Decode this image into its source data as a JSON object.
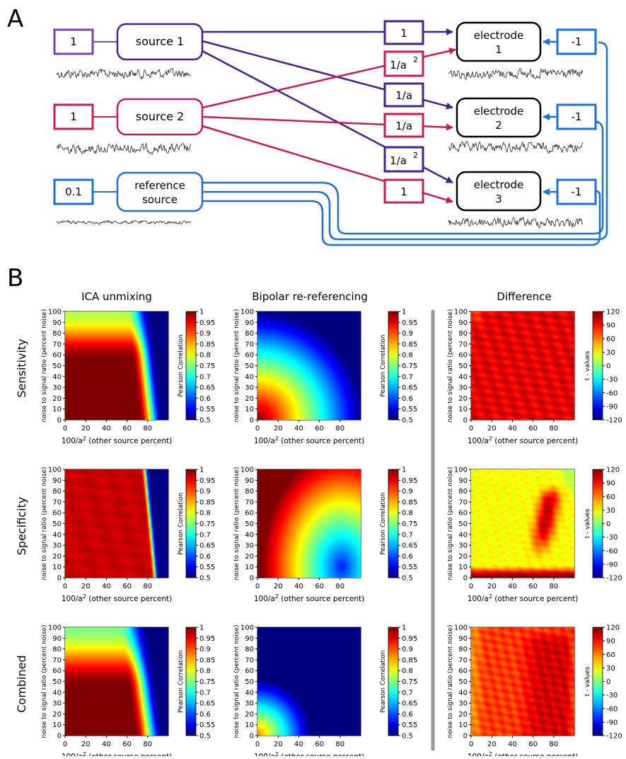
{
  "panel_labels": {
    "a": "A",
    "b": "B"
  },
  "diagram": {
    "gains": {
      "source1": "1",
      "source2": "1",
      "reference": "0.1"
    },
    "sources": {
      "source1": "source 1",
      "source2": "source 2",
      "reference_line1": "reference",
      "reference_line2": "source"
    },
    "weights": {
      "w1": "1",
      "w2": "1/a",
      "w2_sup": "2",
      "w3": "1/a",
      "w4": "1/a",
      "w5": "1/a",
      "w5_sup": "2",
      "w6": "1"
    },
    "electrodes": {
      "e1_line1": "electrode",
      "e1_line2": "1",
      "e2_line1": "electrode",
      "e2_line2": "2",
      "e3_line1": "electrode",
      "e3_line2": "3"
    },
    "ref_weights": {
      "r1": "-1",
      "r2": "-1",
      "r3": "-1"
    }
  },
  "columns": {
    "c1": "ICA unmixing",
    "c2": "Bipolar re-referencing",
    "c3": "Difference"
  },
  "rows": {
    "r1": "Sensitivity",
    "r2": "Specificity",
    "r3": "Combined"
  },
  "axes": {
    "ylabel": "noise to signal ratio (percent noise)",
    "xlabel_pre": "100/a",
    "xlabel_sup": "2",
    "xlabel_post": " (other source percent)",
    "xticks": [
      "0",
      "20",
      "40",
      "60",
      "80"
    ],
    "yticks": [
      "0",
      "10",
      "20",
      "30",
      "40",
      "50",
      "60",
      "70",
      "80",
      "90",
      "100"
    ]
  },
  "colorbars": {
    "corr_label": "Pearson Correlation",
    "corr_ticks": [
      "1",
      "0.95",
      "0.9",
      "0.85",
      "0.8",
      "0.75",
      "0.7",
      "0.65",
      "0.6",
      "0.55",
      "0.5"
    ],
    "t_label": "t - values",
    "t_ticks": [
      "120",
      "90",
      "60",
      "30",
      "0",
      "-30",
      "-60",
      "-90",
      "-120"
    ]
  },
  "colors": {
    "purple": "#7744aa",
    "crimson": "#cc1a55",
    "blue": "#1a6ee0",
    "black": "#000000"
  },
  "chart_data": [
    {
      "type": "heatmap",
      "column": "ICA unmixing",
      "row": "Sensitivity",
      "xlabel": "100/a2 (other source percent)",
      "ylabel": "noise to signal ratio (percent noise)",
      "xlim": [
        0,
        100
      ],
      "ylim": [
        0,
        100
      ],
      "colorbar": "Pearson Correlation",
      "clim": [
        0.5,
        1
      ]
    },
    {
      "type": "heatmap",
      "column": "Bipolar re-referencing",
      "row": "Sensitivity",
      "xlim": [
        0,
        100
      ],
      "ylim": [
        0,
        100
      ],
      "colorbar": "Pearson Correlation",
      "clim": [
        0.5,
        1
      ]
    },
    {
      "type": "heatmap",
      "column": "Difference",
      "row": "Sensitivity",
      "xlim": [
        0,
        100
      ],
      "ylim": [
        0,
        100
      ],
      "colorbar": "t - values",
      "clim": [
        -120,
        120
      ]
    },
    {
      "type": "heatmap",
      "column": "ICA unmixing",
      "row": "Specificity",
      "xlim": [
        0,
        100
      ],
      "ylim": [
        0,
        100
      ],
      "colorbar": "Pearson Correlation",
      "clim": [
        0.5,
        1
      ]
    },
    {
      "type": "heatmap",
      "column": "Bipolar re-referencing",
      "row": "Specificity",
      "xlim": [
        0,
        100
      ],
      "ylim": [
        0,
        100
      ],
      "colorbar": "Pearson Correlation",
      "clim": [
        0.5,
        1
      ]
    },
    {
      "type": "heatmap",
      "column": "Difference",
      "row": "Specificity",
      "xlim": [
        0,
        100
      ],
      "ylim": [
        0,
        100
      ],
      "colorbar": "t - values",
      "clim": [
        -120,
        120
      ]
    },
    {
      "type": "heatmap",
      "column": "ICA unmixing",
      "row": "Combined",
      "xlim": [
        0,
        100
      ],
      "ylim": [
        0,
        100
      ],
      "colorbar": "Pearson Correlation",
      "clim": [
        0.5,
        1
      ]
    },
    {
      "type": "heatmap",
      "column": "Bipolar re-referencing",
      "row": "Combined",
      "xlim": [
        0,
        100
      ],
      "ylim": [
        0,
        100
      ],
      "colorbar": "Pearson Correlation",
      "clim": [
        0.5,
        1
      ]
    },
    {
      "type": "heatmap",
      "column": "Difference",
      "row": "Combined",
      "xlim": [
        0,
        100
      ],
      "ylim": [
        0,
        100
      ],
      "colorbar": "t - values",
      "clim": [
        -120,
        120
      ]
    }
  ]
}
